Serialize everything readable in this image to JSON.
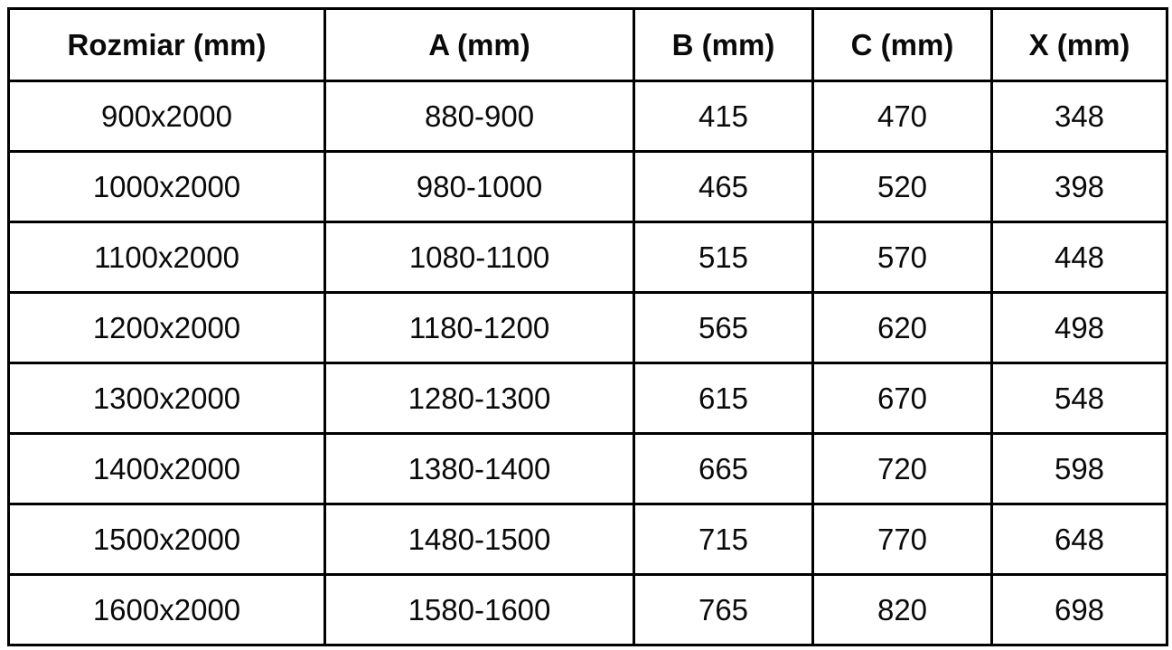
{
  "table": {
    "title_semantic": "size-dimension-table",
    "headers": [
      "Rozmiar (mm)",
      "A (mm)",
      "B (mm)",
      "C (mm)",
      "X (mm)"
    ],
    "rows": [
      [
        "900x2000",
        "880-900",
        "415",
        "470",
        "348"
      ],
      [
        "1000x2000",
        "980-1000",
        "465",
        "520",
        "398"
      ],
      [
        "1100x2000",
        "1080-1100",
        "515",
        "570",
        "448"
      ],
      [
        "1200x2000",
        "1180-1200",
        "565",
        "620",
        "498"
      ],
      [
        "1300x2000",
        "1280-1300",
        "615",
        "670",
        "548"
      ],
      [
        "1400x2000",
        "1380-1400",
        "665",
        "720",
        "598"
      ],
      [
        "1500x2000",
        "1480-1500",
        "715",
        "770",
        "648"
      ],
      [
        "1600x2000",
        "1580-1600",
        "765",
        "820",
        "698"
      ]
    ],
    "colors": {
      "border": "#000000",
      "text": "#0a0a0a",
      "background": "#ffffff"
    }
  }
}
